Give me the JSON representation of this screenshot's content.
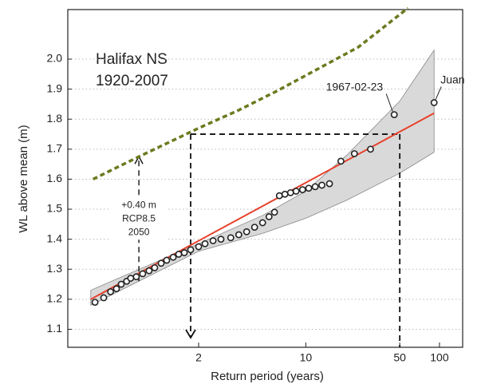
{
  "chart_data": {
    "type": "scatter",
    "title": [
      "Halifax NS",
      "1920-2007"
    ],
    "xlabel": "Return period (years)",
    "ylabel": "WL above mean (m)",
    "xscale": "gumbel",
    "xlim": [
      1.001,
      150
    ],
    "xticks": [
      2,
      10,
      50,
      100
    ],
    "ylim": [
      1.04,
      2.165
    ],
    "yticks": [
      1.1,
      1.2,
      1.3,
      1.4,
      1.5,
      1.6,
      1.7,
      1.8,
      1.9,
      {
        "value": 2,
        "label": "2.0"
      }
    ],
    "grid": true,
    "points": {
      "color": "#222222",
      "x": [
        1.014,
        1.026,
        1.04,
        1.056,
        1.072,
        1.094,
        1.113,
        1.144,
        1.186,
        1.236,
        1.287,
        1.355,
        1.422,
        1.511,
        1.597,
        1.695,
        1.82,
        2,
        2.166,
        2.404,
        2.675,
        3.07,
        3.45,
        3.88,
        4.38,
        4.96,
        5.49,
        5.99,
        6.48,
        7.09,
        7.77,
        8.52,
        9.47,
        10.5,
        11.7,
        13.1,
        14.9,
        18.1,
        22.8,
        30.1,
        45.4,
        91
      ],
      "values": [
        1.19,
        1.205,
        1.225,
        1.235,
        1.25,
        1.26,
        1.27,
        1.275,
        1.285,
        1.295,
        1.305,
        1.32,
        1.33,
        1.34,
        1.35,
        1.355,
        1.365,
        1.375,
        1.385,
        1.395,
        1.4,
        1.405,
        1.415,
        1.425,
        1.44,
        1.455,
        1.475,
        1.49,
        1.545,
        1.55,
        1.555,
        1.56,
        1.565,
        1.57,
        1.575,
        1.58,
        1.585,
        1.66,
        1.685,
        1.7,
        1.815,
        1.855
      ]
    },
    "fit": {
      "color": "#e8412c",
      "x": [
        1.01,
        91
      ],
      "values": [
        1.2,
        1.82
      ]
    },
    "band": {
      "color": "#d9d9d9",
      "x": [
        1.01,
        2,
        5,
        10,
        20,
        50,
        91
      ],
      "upper": [
        1.23,
        1.385,
        1.48,
        1.56,
        1.68,
        1.86,
        2.03
      ],
      "lower": [
        1.18,
        1.36,
        1.42,
        1.47,
        1.53,
        1.62,
        1.69
      ]
    },
    "projection": {
      "color": "#6b7a1f",
      "x": [
        1.012,
        1.16,
        2,
        3.45,
        6.3,
        24.4,
        57.7
      ],
      "values": [
        1.6,
        1.675,
        1.77,
        1.83,
        1.895,
        2.04,
        2.17
      ]
    },
    "uplift": {
      "x": 1.16,
      "from": 1.26,
      "to": 1.675,
      "label": [
        "+0.40 m",
        "RCP8.5",
        "2050"
      ]
    },
    "guide": {
      "level": 1.75,
      "x_start": 1.82,
      "x_end": 50
    },
    "annotations": [
      {
        "text": "1967-02-23",
        "point": 40
      },
      {
        "text": "Juan",
        "point": 41
      }
    ]
  }
}
